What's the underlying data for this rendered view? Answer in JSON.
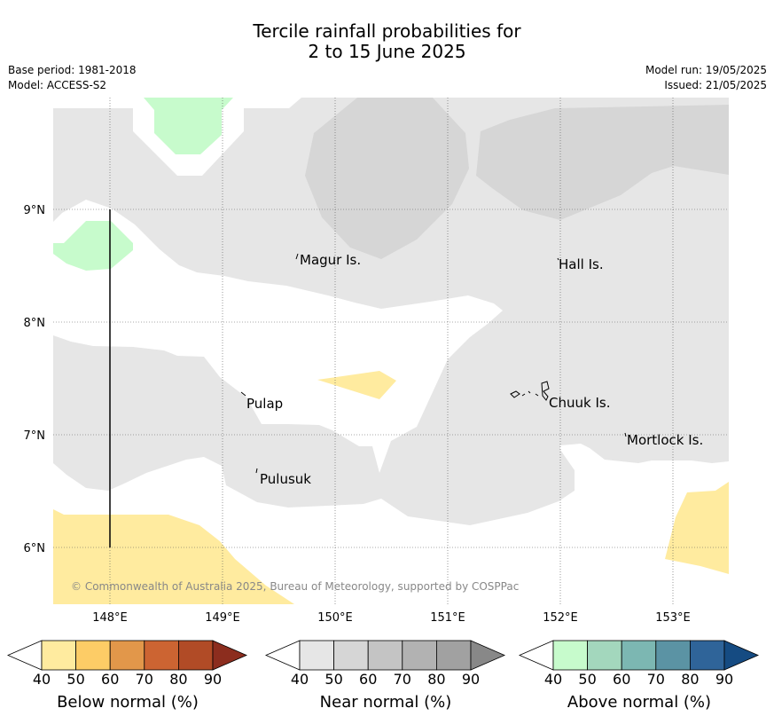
{
  "header": {
    "title_line1": "Tercile rainfall probabilities for",
    "title_line2": "2 to 15 June 2025",
    "base_period": "Base period: 1981-2018",
    "model": "Model: ACCESS-S2",
    "model_run": "Model run: 19/05/2025",
    "issued": "Issued: 21/05/2025"
  },
  "map": {
    "lat_labels": [
      "9°N",
      "8°N",
      "7°N",
      "6°N"
    ],
    "lon_labels": [
      "148°E",
      "149°E",
      "150°E",
      "151°E",
      "152°E",
      "153°E"
    ],
    "places": [
      "Magur Is.",
      "Hall Is.",
      "Pulap",
      "Chuuk Is.",
      "Mortlock Is.",
      "Pulusuk"
    ],
    "copyright": "© Commonwealth of Australia 2025, Bureau of Meteorology, supported by COSPPac"
  },
  "colorbars": [
    {
      "label": "Below normal (%)",
      "ticks": [
        "40",
        "50",
        "60",
        "70",
        "80",
        "90"
      ],
      "colors": [
        "#ffffff",
        "#ffeb9f",
        "#fdcc66",
        "#e2974a",
        "#cc6432",
        "#b14b26",
        "#8c2d1e"
      ]
    },
    {
      "label": "Near normal (%)",
      "ticks": [
        "40",
        "50",
        "60",
        "70",
        "80",
        "90"
      ],
      "colors": [
        "#ffffff",
        "#e6e6e6",
        "#d6d6d6",
        "#c4c4c4",
        "#b2b2b2",
        "#a1a1a1",
        "#888888"
      ]
    },
    {
      "label": "Above normal (%)",
      "ticks": [
        "40",
        "50",
        "60",
        "70",
        "80",
        "90"
      ],
      "colors": [
        "#ffffff",
        "#c7fbcc",
        "#a3d7bd",
        "#7cb7b2",
        "#5b93a4",
        "#2f6499",
        "#154b82"
      ]
    }
  ]
}
